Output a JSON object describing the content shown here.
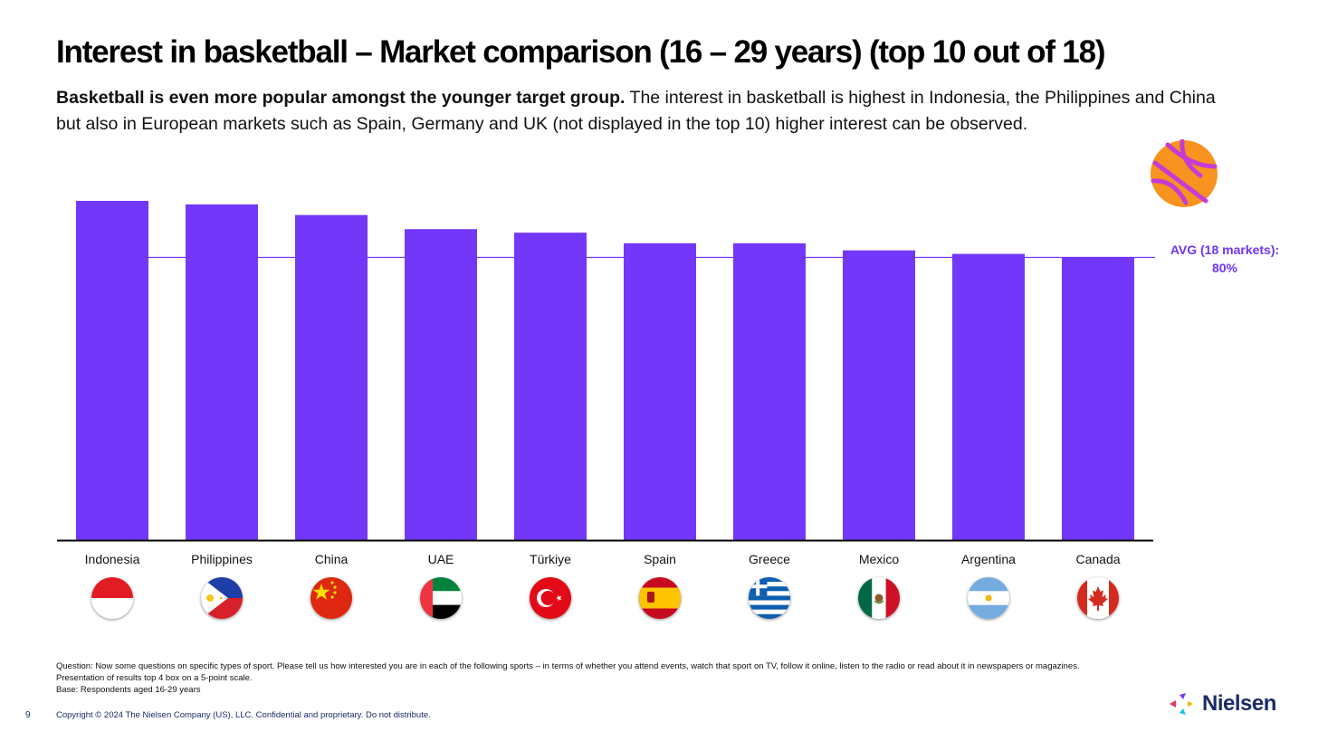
{
  "title": "Interest in basketball – Market comparison (16 – 29 years) (top 10 out of 18)",
  "subtitle": {
    "bold": "Basketball is even more popular amongst the younger target group.",
    "text": " The interest in basketball is highest in Indonesia, the Philippines and China but also in European markets such as Spain, Germany and UK (not displayed in the top 10) higher interest can be observed."
  },
  "avg_label": {
    "line1": "AVG (18 markets):",
    "line2": "80%"
  },
  "colors": {
    "bar": "#7337fa",
    "accent_text": "#7034f7",
    "brand": "#1a2b6b",
    "ball": "#f7931e",
    "ball_lines": "#c63bd6"
  },
  "icons": {
    "basketball": "basketball-icon",
    "logo": "nielsen-logo-icon"
  },
  "chart_data": {
    "type": "bar",
    "categories": [
      "Indonesia",
      "Philippines",
      "China",
      "UAE",
      "Türkiye",
      "Spain",
      "Greece",
      "Mexico",
      "Argentina",
      "Canada"
    ],
    "values": [
      96,
      95,
      92,
      88,
      87,
      84,
      84,
      82,
      81,
      80
    ],
    "average": 80,
    "ylim": [
      0,
      100
    ],
    "grid": false
  },
  "flags": [
    "indonesia-flag-icon",
    "philippines-flag-icon",
    "china-flag-icon",
    "uae-flag-icon",
    "turkiye-flag-icon",
    "spain-flag-icon",
    "greece-flag-icon",
    "mexico-flag-icon",
    "argentina-flag-icon",
    "canada-flag-icon"
  ],
  "footnote": {
    "question": "Question: Now some questions on specific types of sport. Please tell us how interested you are in each of the following sports – in terms of whether you attend events, watch that sport on TV, follow it online, listen to the radio or read about it in newspapers or magazines. Presentation of results top 4 box on a 5-point scale.",
    "base": "Base: Respondents aged 16-29 years"
  },
  "page_number": "9",
  "copyright": "Copyright © 2024 The Nielsen Company (US), LLC. Confidential and proprietary. Do not distribute.",
  "logo_text": "Nielsen"
}
